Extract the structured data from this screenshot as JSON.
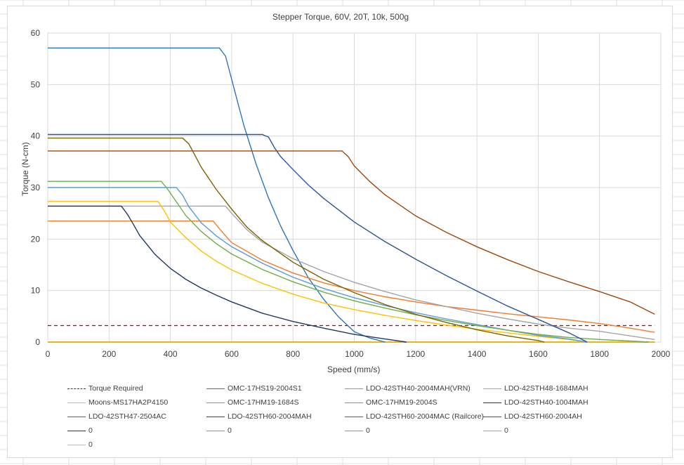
{
  "chart_data": {
    "type": "line",
    "title": "Stepper Torque, 60V, 20T, 10k, 500g",
    "xlabel": "Speed (mm/s)",
    "ylabel": "Torque (N-cm)",
    "xlim": [
      0,
      2000
    ],
    "ylim": [
      0,
      60
    ],
    "x_ticks": [
      "0",
      "200",
      "400",
      "600",
      "800",
      "1000",
      "1200",
      "1400",
      "1600",
      "1800",
      "2000"
    ],
    "y_ticks": [
      "0",
      "10",
      "20",
      "30",
      "40",
      "50",
      "60"
    ],
    "grid": true,
    "legend_position": "bottom",
    "series": [
      {
        "name": "Torque Required",
        "color": "#c00000",
        "dashed": true,
        "points": [
          [
            0,
            3.2
          ],
          [
            1980,
            3.2
          ]
        ]
      },
      {
        "name": "OMC-17HS19-2004S1",
        "color": "#2e75b6",
        "points": [
          [
            0,
            57.1
          ],
          [
            560,
            57.1
          ],
          [
            580,
            55.5
          ],
          [
            600,
            51
          ],
          [
            620,
            46.5
          ],
          [
            640,
            42
          ],
          [
            680,
            34.5
          ],
          [
            720,
            28
          ],
          [
            760,
            22.5
          ],
          [
            800,
            17.8
          ],
          [
            850,
            12.5
          ],
          [
            900,
            8.3
          ],
          [
            950,
            4.8
          ],
          [
            1000,
            2
          ],
          [
            1050,
            0.8
          ],
          [
            1100,
            0
          ]
        ]
      },
      {
        "name": "LDO-42STH40-2004MAH(VRN)",
        "color": "#ed7d31",
        "points": [
          [
            0,
            23.5
          ],
          [
            540,
            23.5
          ],
          [
            560,
            22
          ],
          [
            600,
            19.3
          ],
          [
            700,
            15.9
          ],
          [
            800,
            13.4
          ],
          [
            900,
            11.5
          ],
          [
            1000,
            10
          ],
          [
            1100,
            8.8
          ],
          [
            1200,
            7.8
          ],
          [
            1300,
            6.9
          ],
          [
            1400,
            6.2
          ],
          [
            1500,
            5.5
          ],
          [
            1600,
            4.9
          ],
          [
            1700,
            4.3
          ],
          [
            1800,
            3.6
          ],
          [
            1900,
            2.7
          ],
          [
            1980,
            1.9
          ]
        ]
      },
      {
        "name": "LDO-42STH48-1684MAH",
        "color": "#a5a5a5",
        "points": [
          [
            0,
            26.4
          ],
          [
            580,
            26.4
          ],
          [
            600,
            25
          ],
          [
            650,
            21.8
          ],
          [
            700,
            19.4
          ],
          [
            800,
            16.2
          ],
          [
            900,
            13.7
          ],
          [
            1000,
            11.6
          ],
          [
            1100,
            9.8
          ],
          [
            1200,
            8.2
          ],
          [
            1300,
            6.9
          ],
          [
            1400,
            5.6
          ],
          [
            1500,
            4.5
          ],
          [
            1600,
            3.5
          ],
          [
            1700,
            2.7
          ],
          [
            1800,
            2.1
          ],
          [
            1900,
            1.2
          ],
          [
            1980,
            0.5
          ]
        ]
      },
      {
        "name": "Moons-MS17HA2P4150",
        "color": "#ffc000",
        "points": [
          [
            0,
            27.3
          ],
          [
            360,
            27.3
          ],
          [
            380,
            25.5
          ],
          [
            400,
            23.3
          ],
          [
            450,
            20.3
          ],
          [
            500,
            17.7
          ],
          [
            550,
            15.7
          ],
          [
            600,
            14
          ],
          [
            700,
            11.4
          ],
          [
            800,
            9.3
          ],
          [
            900,
            7.6
          ],
          [
            1000,
            6.3
          ],
          [
            1100,
            5.2
          ],
          [
            1200,
            4.2
          ],
          [
            1300,
            3.3
          ],
          [
            1400,
            2.5
          ],
          [
            1500,
            1.8
          ],
          [
            1600,
            1.1
          ],
          [
            1700,
            0.5
          ],
          [
            1760,
            0
          ]
        ]
      },
      {
        "name": "OMC-17HM19-1684S",
        "color": "#5b9bd5",
        "points": [
          [
            0,
            30
          ],
          [
            420,
            30
          ],
          [
            440,
            28.5
          ],
          [
            460,
            26.3
          ],
          [
            500,
            23.2
          ],
          [
            550,
            20.6
          ],
          [
            600,
            18.5
          ],
          [
            700,
            15.3
          ],
          [
            800,
            12.6
          ],
          [
            900,
            10.4
          ],
          [
            1000,
            8.6
          ],
          [
            1100,
            7.1
          ],
          [
            1200,
            5.7
          ],
          [
            1300,
            4.5
          ],
          [
            1400,
            3.4
          ],
          [
            1500,
            2.3
          ],
          [
            1600,
            1.3
          ],
          [
            1700,
            0.6
          ],
          [
            1760,
            0
          ]
        ]
      },
      {
        "name": "OMC-17HM19-2004S",
        "color": "#70ad47",
        "points": [
          [
            0,
            31.2
          ],
          [
            370,
            31.2
          ],
          [
            390,
            29.8
          ],
          [
            420,
            27.2
          ],
          [
            450,
            24.6
          ],
          [
            500,
            21.5
          ],
          [
            550,
            19.1
          ],
          [
            600,
            17.1
          ],
          [
            700,
            14.1
          ],
          [
            800,
            11.7
          ],
          [
            900,
            9.7
          ],
          [
            1000,
            8
          ],
          [
            1100,
            6.6
          ],
          [
            1200,
            5.3
          ],
          [
            1300,
            4.2
          ],
          [
            1400,
            3.2
          ],
          [
            1500,
            2.3
          ],
          [
            1600,
            1.5
          ],
          [
            1700,
            0.9
          ],
          [
            1800,
            0.5
          ],
          [
            1900,
            0.2
          ],
          [
            1960,
            0
          ]
        ]
      },
      {
        "name": "LDO-42STH40-1004MAH",
        "color": "#1f3864",
        "points": [
          [
            0,
            26.4
          ],
          [
            240,
            26.4
          ],
          [
            260,
            24.8
          ],
          [
            280,
            22.8
          ],
          [
            300,
            20.7
          ],
          [
            350,
            17
          ],
          [
            400,
            14.3
          ],
          [
            450,
            12.2
          ],
          [
            500,
            10.5
          ],
          [
            550,
            9.1
          ],
          [
            600,
            7.8
          ],
          [
            700,
            5.6
          ],
          [
            800,
            4
          ],
          [
            900,
            2.7
          ],
          [
            1000,
            1.5
          ],
          [
            1100,
            0.6
          ],
          [
            1170,
            0
          ]
        ]
      },
      {
        "name": "LDO-42STH47-2504AC",
        "color": "#7f6000",
        "points": [
          [
            0,
            39.6
          ],
          [
            440,
            39.6
          ],
          [
            460,
            38.5
          ],
          [
            480,
            36.3
          ],
          [
            500,
            34
          ],
          [
            550,
            29.6
          ],
          [
            600,
            25.8
          ],
          [
            650,
            22.3
          ],
          [
            700,
            19.7
          ],
          [
            800,
            15.5
          ],
          [
            900,
            12.2
          ],
          [
            1000,
            9.6
          ],
          [
            1100,
            7.3
          ],
          [
            1200,
            5.4
          ],
          [
            1300,
            3.8
          ],
          [
            1400,
            2.4
          ],
          [
            1500,
            1.2
          ],
          [
            1600,
            0.3
          ],
          [
            1620,
            0
          ]
        ]
      },
      {
        "name": "LDO-42STH60-2004MAH",
        "color": "#264478",
        "points": [
          [
            0,
            0
          ],
          [
            1980,
            0
          ]
        ]
      },
      {
        "name": "LDO-42STH60-2004MAC (Railcore)",
        "color": "#9e480e",
        "points": [
          [
            0,
            37.1
          ],
          [
            960,
            37.1
          ],
          [
            980,
            36
          ],
          [
            1000,
            34.2
          ],
          [
            1050,
            31.2
          ],
          [
            1100,
            28.6
          ],
          [
            1200,
            24.5
          ],
          [
            1300,
            21.3
          ],
          [
            1400,
            18.5
          ],
          [
            1500,
            16
          ],
          [
            1600,
            13.7
          ],
          [
            1700,
            11.7
          ],
          [
            1800,
            9.8
          ],
          [
            1900,
            7.8
          ],
          [
            1980,
            5.4
          ]
        ]
      },
      {
        "name": "LDO-42STH60-2004AH",
        "color": "#2f5597",
        "points": [
          [
            0,
            40.3
          ],
          [
            700,
            40.3
          ],
          [
            720,
            39.8
          ],
          [
            740,
            37.7
          ],
          [
            760,
            36
          ],
          [
            800,
            33.5
          ],
          [
            850,
            30.5
          ],
          [
            900,
            27.9
          ],
          [
            1000,
            23.3
          ],
          [
            1100,
            19.5
          ],
          [
            1200,
            16.1
          ],
          [
            1300,
            12.9
          ],
          [
            1400,
            9.9
          ],
          [
            1500,
            7
          ],
          [
            1600,
            4.4
          ],
          [
            1700,
            1.8
          ],
          [
            1760,
            0
          ]
        ]
      },
      {
        "name": "0",
        "color": "#1f3864",
        "points": [
          [
            0,
            0
          ],
          [
            1980,
            0
          ]
        ]
      },
      {
        "name": "0",
        "color": "#5b9bd5",
        "points": [
          [
            0,
            0
          ],
          [
            1980,
            0
          ]
        ]
      },
      {
        "name": "0",
        "color": "#ed7d31",
        "points": [
          [
            0,
            0
          ],
          [
            1980,
            0
          ]
        ]
      },
      {
        "name": "0",
        "color": "#a5a5a5",
        "points": [
          [
            0,
            0
          ],
          [
            1980,
            0
          ]
        ]
      },
      {
        "name": "0",
        "color": "#ffc000",
        "points": [
          [
            0,
            0
          ],
          [
            1980,
            0
          ]
        ]
      }
    ]
  }
}
